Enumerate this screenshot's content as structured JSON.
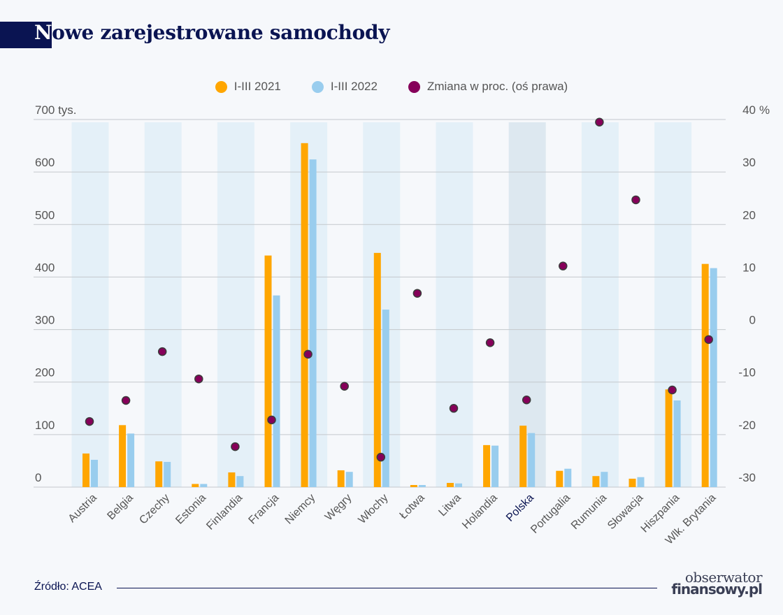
{
  "title": {
    "first_letter": "N",
    "rest": "owe zarejestrowane samochody"
  },
  "legend": [
    {
      "label": "I-III 2021",
      "color": "#ffa600"
    },
    {
      "label": "I-III 2022",
      "color": "#99cdee"
    },
    {
      "label": "Zmiana w proc. (oś prawa)",
      "color": "#86005a"
    }
  ],
  "colors": {
    "band": "#e4f0f8",
    "highlight_band": "#dde8f0",
    "grid": "#c4c8cc",
    "highlight_label": "#0a1452",
    "dot_stroke": "#3b3b3b"
  },
  "chart_data": {
    "type": "bar",
    "title": "Nowe zarejestrowane samochody",
    "categories": [
      "Austria",
      "Belgia",
      "Czechy",
      "Estonia",
      "Finlandia",
      "Francja",
      "Niemcy",
      "Węgry",
      "Włochy",
      "Łotwa",
      "Litwa",
      "Holandia",
      "Polska",
      "Portugalia",
      "Rumunia",
      "Słowacja",
      "Hiszpania",
      "Wlk. Brytania"
    ],
    "highlighted_category": "Polska",
    "series": [
      {
        "name": "I-III 2021",
        "axis": "left",
        "type": "bar",
        "values": [
          64,
          118,
          49,
          6,
          28,
          441,
          655,
          32,
          446,
          4,
          8,
          80,
          117,
          31,
          21,
          16,
          186,
          425
        ]
      },
      {
        "name": "I-III 2022",
        "axis": "left",
        "type": "bar",
        "values": [
          52,
          102,
          48,
          6,
          21,
          365,
          624,
          29,
          338,
          4,
          7,
          79,
          103,
          35,
          29,
          19,
          165,
          417
        ]
      },
      {
        "name": "Zmiana w proc. (oś prawa)",
        "axis": "right",
        "type": "scatter",
        "values": [
          -17.5,
          -13.5,
          -4.2,
          -9.4,
          -22.3,
          -17.2,
          -4.7,
          -10.8,
          -24.3,
          6.9,
          -15.0,
          -2.5,
          -13.4,
          12.1,
          39.5,
          24.7,
          -11.5,
          -1.9
        ]
      }
    ],
    "left_axis": {
      "ylim": [
        0,
        700
      ],
      "ticks": [
        "0",
        "100",
        "200",
        "300",
        "400",
        "500",
        "600",
        "700"
      ],
      "unit": "tys."
    },
    "right_axis": {
      "ylim": [
        -30,
        40
      ],
      "ticks": [
        "-30",
        "-20",
        "-10",
        "0",
        "10",
        "20",
        "30",
        "40"
      ],
      "unit": "%"
    },
    "grid": true,
    "legend_position": "top-center"
  },
  "footer": {
    "source": "Źródło: ACEA",
    "logo_line1": "obserwator",
    "logo_line2": "finansowy.pl"
  }
}
